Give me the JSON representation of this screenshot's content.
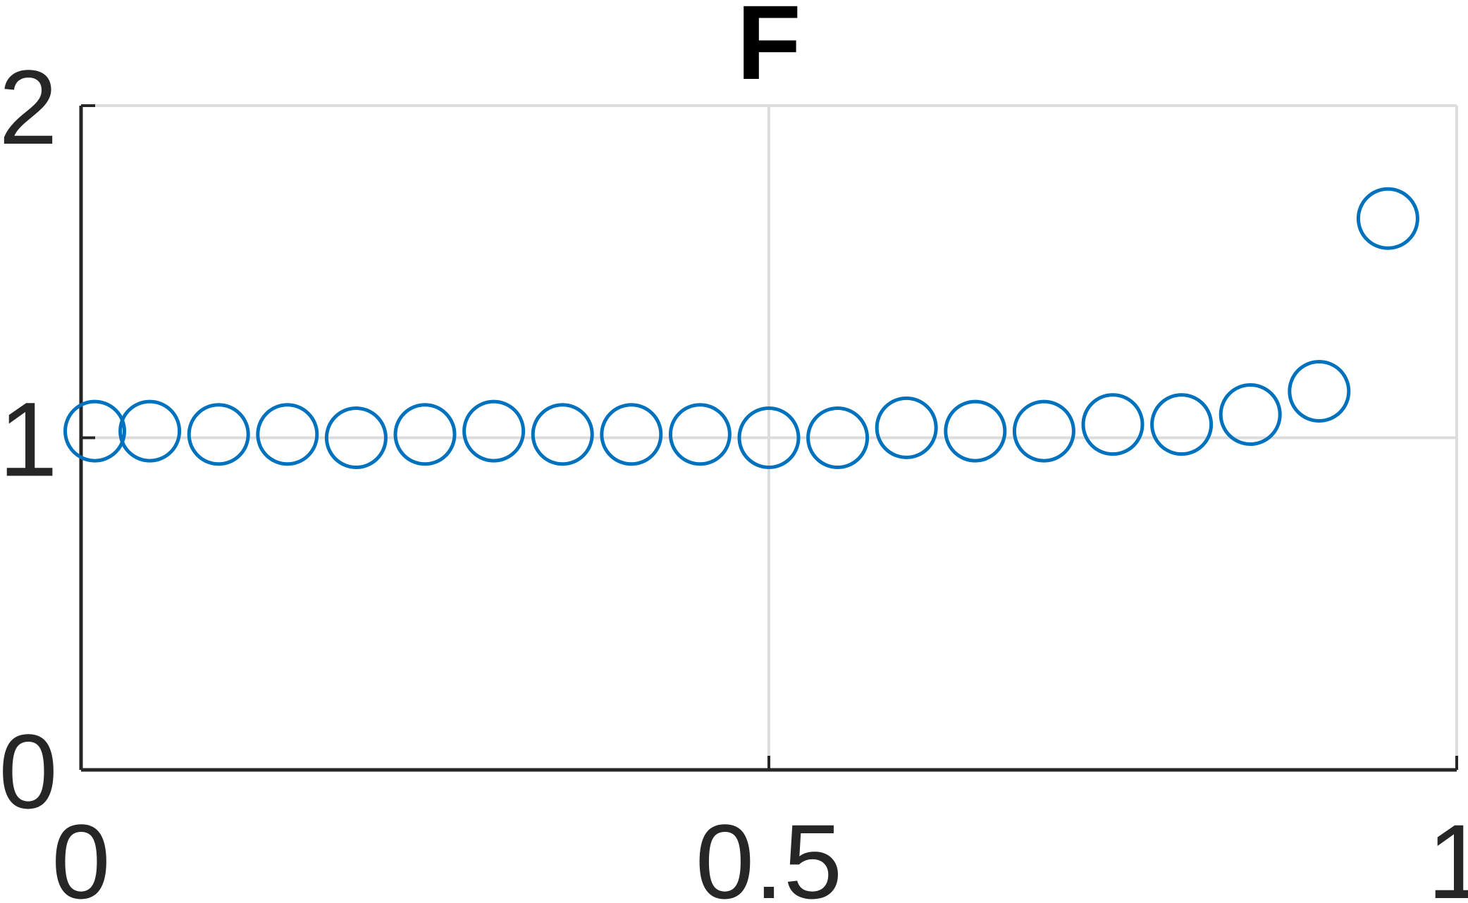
{
  "chart_data": {
    "type": "scatter",
    "title": "F",
    "xlabel": "",
    "ylabel": "",
    "xlim": [
      0,
      1
    ],
    "ylim": [
      0,
      2
    ],
    "xticks": [
      0,
      0.5,
      1
    ],
    "xtick_labels": [
      "0",
      "0.5",
      "1"
    ],
    "yticks": [
      0,
      1,
      2
    ],
    "ytick_labels": [
      "0",
      "1",
      "2"
    ],
    "grid": true,
    "marker": "circle-open",
    "color": "#0072BD",
    "series": [
      {
        "x": [
          0.01,
          0.05,
          0.1,
          0.15,
          0.2,
          0.25,
          0.3,
          0.35,
          0.4,
          0.45,
          0.5,
          0.55,
          0.6,
          0.65,
          0.7,
          0.75,
          0.8,
          0.85,
          0.9,
          0.95
        ],
        "y": [
          1.02,
          1.02,
          1.01,
          1.01,
          1.0,
          1.01,
          1.02,
          1.01,
          1.01,
          1.01,
          1.0,
          1.0,
          1.03,
          1.02,
          1.02,
          1.04,
          1.04,
          1.07,
          1.14,
          1.66
        ]
      }
    ]
  }
}
